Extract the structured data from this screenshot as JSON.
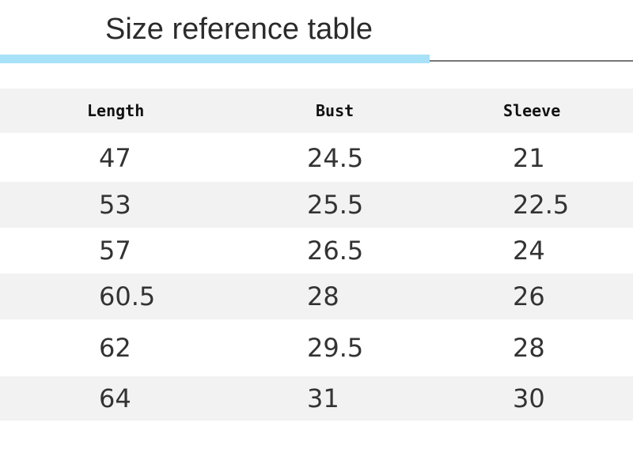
{
  "title": "Size reference table",
  "colors": {
    "accent_bar": "#a8e2f8",
    "stripe": "#f2f2f2"
  },
  "table": {
    "headers": [
      "Length",
      "Bust",
      "Sleeve"
    ],
    "rows": [
      [
        "47",
        "24.5",
        "21"
      ],
      [
        "53",
        "25.5",
        "22.5"
      ],
      [
        "57",
        "26.5",
        "24"
      ],
      [
        "60.5",
        "28",
        "26"
      ],
      [
        "62",
        "29.5",
        "28"
      ],
      [
        "64",
        "31",
        "30"
      ]
    ]
  }
}
